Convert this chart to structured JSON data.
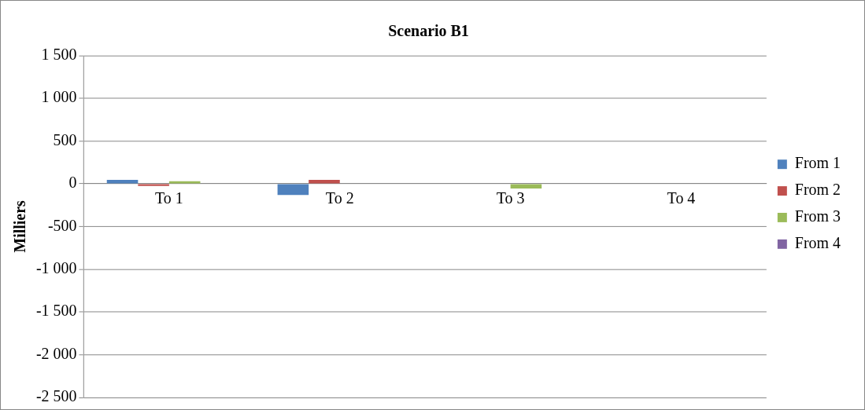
{
  "chart_data": {
    "type": "bar",
    "title": "Scenario B1",
    "ylabel": "Milliers",
    "categories": [
      "To 1",
      "To 2",
      "To 3",
      "To 4"
    ],
    "series": [
      {
        "name": "From 1",
        "color": "#4f81bd",
        "values": [
          45,
          -130,
          0,
          0
        ]
      },
      {
        "name": "From 2",
        "color": "#c0504d",
        "values": [
          -25,
          45,
          0,
          0
        ]
      },
      {
        "name": "From 3",
        "color": "#9bbb59",
        "values": [
          30,
          0,
          -55,
          0
        ]
      },
      {
        "name": "From 4",
        "color": "#8064a2",
        "values": [
          0,
          0,
          0,
          0
        ]
      }
    ],
    "ylim": [
      -2500,
      1500
    ],
    "yticks": [
      {
        "value": -2500,
        "label": "-2 500"
      },
      {
        "value": -2000,
        "label": "-2 000"
      },
      {
        "value": -1500,
        "label": "-1 500"
      },
      {
        "value": -1000,
        "label": "-1 000"
      },
      {
        "value": -500,
        "label": "-500"
      },
      0,
      500,
      {
        "value": 1000,
        "label": "1 000"
      },
      {
        "value": 1500,
        "label": "1 500"
      }
    ],
    "grid": "y",
    "legend": "right"
  }
}
